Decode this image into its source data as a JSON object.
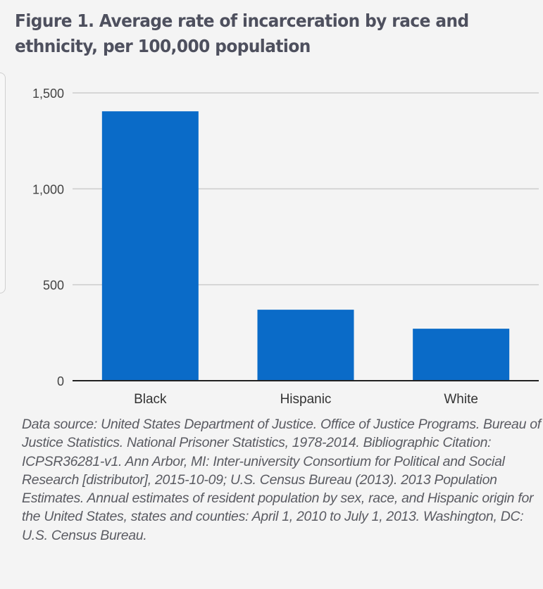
{
  "chart_data": {
    "type": "bar",
    "title": "Figure 1. Average rate of incarceration by race and ethnicity, per 100,000 population",
    "title_lines": [
      "Figure 1. Average rate of incarceration by race and",
      "ethnicity, per 100,000 population"
    ],
    "categories": [
      "Black",
      "Hispanic",
      "White"
    ],
    "values": [
      1404,
      370,
      271
    ],
    "xlabel": "",
    "ylabel": "",
    "ylim": [
      0,
      1500
    ],
    "yticks": [
      0,
      500,
      1000,
      1500
    ],
    "ytick_labels": [
      "0",
      "500",
      "1,000",
      "1,500"
    ],
    "grid": true,
    "legend": "none",
    "colors": {
      "bar": "#0a6bc8",
      "grid": "#cccccc",
      "baseline": "#222222"
    }
  },
  "footnote": "Data source: United States Department of Justice. Office of Justice Programs. Bureau of Justice Statistics. National Prisoner Statistics, 1978-2014. Bibliographic Citation: ICPSR36281-v1. Ann Arbor, MI: Inter-university Consortium for Political and Social Research [distributor], 2015-10-09; U.S. Census Bureau (2013). 2013 Population Estimates. Annual estimates of resident population by sex, race, and Hispanic origin for the United States, states and counties: April 1, 2010 to July 1, 2013. Washington, DC: U.S. Census Bureau."
}
